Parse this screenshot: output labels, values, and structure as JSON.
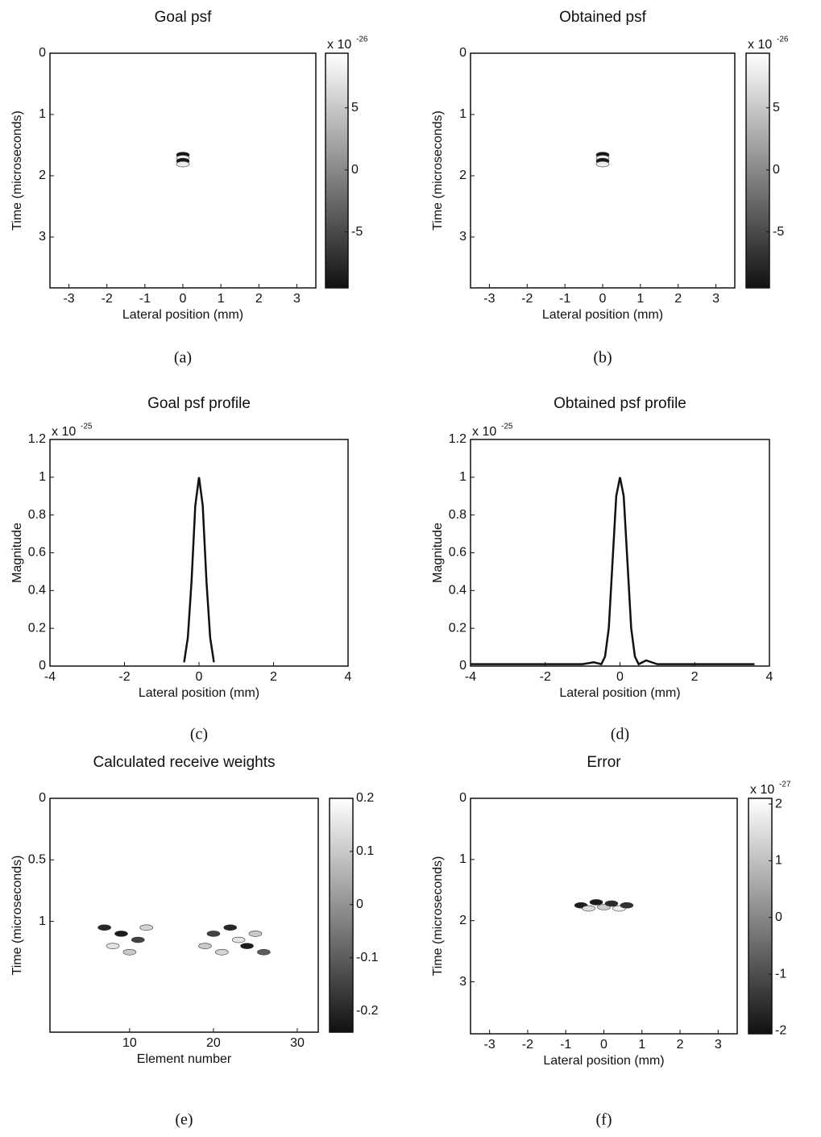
{
  "chart_data": [
    {
      "type": "heatmap",
      "title": "Goal psf",
      "xlabel": "Lateral position (mm)",
      "ylabel": "Time (microseconds)",
      "caption": "(a)",
      "xlim": [
        -3.5,
        3.5
      ],
      "xticks": [
        -3,
        -2,
        -1,
        0,
        1,
        2,
        3
      ],
      "ylim": [
        0,
        3.83
      ],
      "yticks": [
        0,
        1,
        2,
        3
      ],
      "clim": [
        -9.5,
        9.4
      ],
      "cticks": [
        -5,
        0,
        5
      ],
      "multiplier": {
        "base": "x 10",
        "exponent": "-26"
      },
      "colormap": [
        "#111111",
        "#ffffff"
      ],
      "points": {
        "x": [
          0,
          0,
          0,
          0
        ],
        "y": [
          1.66,
          1.71,
          1.76,
          1.81
        ],
        "values": [
          -9,
          8,
          -9,
          8
        ]
      }
    },
    {
      "type": "heatmap",
      "title": "Obtained psf",
      "xlabel": "Lateral position (mm)",
      "ylabel": "Time (microseconds)",
      "caption": "(b)",
      "xlim": [
        -3.5,
        3.5
      ],
      "xticks": [
        -3,
        -2,
        -1,
        0,
        1,
        2,
        3
      ],
      "ylim": [
        0,
        3.83
      ],
      "yticks": [
        0,
        1,
        2,
        3
      ],
      "clim": [
        -9.5,
        9.4
      ],
      "cticks": [
        -5,
        0,
        5
      ],
      "multiplier": {
        "base": "x 10",
        "exponent": "-26"
      },
      "colormap": [
        "#111111",
        "#ffffff"
      ],
      "points": {
        "x": [
          0,
          0,
          0,
          0
        ],
        "y": [
          1.66,
          1.71,
          1.76,
          1.81
        ],
        "values": [
          -9,
          8,
          -9,
          8
        ]
      }
    },
    {
      "type": "line",
      "title": "Goal psf profile",
      "xlabel": "Lateral position (mm)",
      "ylabel": "Magnitude",
      "caption": "(c)",
      "xlim": [
        -4,
        4
      ],
      "xticks": [
        -4,
        -2,
        0,
        2,
        4
      ],
      "ylim": [
        0,
        1.2
      ],
      "yticks": [
        0,
        0.2,
        0.4,
        0.6,
        0.8,
        1,
        1.2
      ],
      "multiplier": {
        "base": "x 10",
        "exponent": "-25"
      },
      "color": "#111111",
      "x": [
        -0.4,
        -0.3,
        -0.2,
        -0.1,
        0,
        0.1,
        0.2,
        0.3,
        0.4
      ],
      "values": [
        0.02,
        0.15,
        0.45,
        0.85,
        1.0,
        0.85,
        0.45,
        0.15,
        0.02
      ]
    },
    {
      "type": "line",
      "title": "Obtained psf profile",
      "xlabel": "Lateral position (mm)",
      "ylabel": "Magnitude",
      "caption": "(d)",
      "xlim": [
        -4,
        4
      ],
      "xticks": [
        -4,
        -2,
        0,
        2,
        4
      ],
      "ylim": [
        0,
        1.2
      ],
      "yticks": [
        0,
        0.2,
        0.4,
        0.6,
        0.8,
        1,
        1.2
      ],
      "multiplier": {
        "base": "x 10",
        "exponent": "-25"
      },
      "color": "#111111",
      "x": [
        -4,
        -3,
        -2,
        -1,
        -0.7,
        -0.5,
        -0.4,
        -0.3,
        -0.2,
        -0.1,
        0,
        0.1,
        0.2,
        0.3,
        0.4,
        0.5,
        0.7,
        1,
        2,
        3,
        3.6
      ],
      "values": [
        0.01,
        0.01,
        0.01,
        0.01,
        0.02,
        0.01,
        0.05,
        0.2,
        0.55,
        0.9,
        1.0,
        0.9,
        0.55,
        0.2,
        0.05,
        0.01,
        0.03,
        0.01,
        0.01,
        0.01,
        0.01
      ]
    },
    {
      "type": "heatmap",
      "title": "Calculated receive weights",
      "xlabel": "Element number",
      "ylabel": "Time (microseconds)",
      "caption": "(e)",
      "xlim": [
        0.5,
        32.5
      ],
      "xticks": [
        10,
        20,
        30
      ],
      "ylim": [
        0,
        1.9
      ],
      "yticks": [
        0,
        0.5,
        1
      ],
      "clim": [
        -0.24,
        0.2
      ],
      "cticks": [
        -0.2,
        -0.1,
        0,
        0.1,
        0.2
      ],
      "colormap": [
        "#111111",
        "#ffffff"
      ],
      "points": {
        "x": [
          7,
          8,
          9,
          10,
          11,
          12,
          19,
          20,
          21,
          22,
          23,
          24,
          25,
          26
        ],
        "y": [
          1.05,
          1.2,
          1.1,
          1.25,
          1.15,
          1.05,
          1.2,
          1.1,
          1.25,
          1.05,
          1.15,
          1.2,
          1.1,
          1.25
        ],
        "values": [
          -0.2,
          0.15,
          -0.22,
          0.1,
          -0.15,
          0.12,
          0.1,
          -0.15,
          0.12,
          -0.2,
          0.15,
          -0.22,
          0.1,
          -0.1
        ]
      }
    },
    {
      "type": "heatmap",
      "title": "Error",
      "xlabel": "Lateral position (mm)",
      "ylabel": "Time (microseconds)",
      "caption": "(f)",
      "xlim": [
        -3.5,
        3.5
      ],
      "xticks": [
        -3,
        -2,
        -1,
        0,
        1,
        2,
        3
      ],
      "ylim": [
        0,
        3.85
      ],
      "yticks": [
        0,
        1,
        2,
        3
      ],
      "clim": [
        -2.05,
        2.1
      ],
      "cticks": [
        -2,
        -1,
        0,
        1,
        2
      ],
      "multiplier": {
        "base": "x 10",
        "exponent": "-27"
      },
      "colormap": [
        "#111111",
        "#ffffff"
      ],
      "points": {
        "x": [
          -0.6,
          -0.4,
          -0.2,
          0,
          0.2,
          0.4,
          0.6
        ],
        "y": [
          1.75,
          1.8,
          1.7,
          1.78,
          1.72,
          1.8,
          1.75
        ],
        "values": [
          -1.8,
          1.5,
          -1.9,
          1.2,
          -1.6,
          1.8,
          -1.5
        ]
      }
    }
  ]
}
